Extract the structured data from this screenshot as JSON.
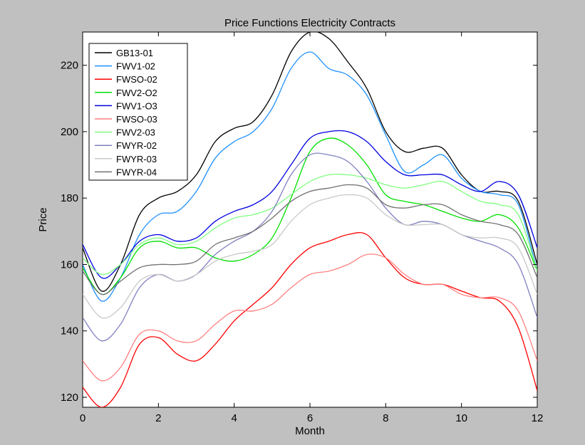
{
  "chart_data": {
    "type": "line",
    "title": "Price Functions Electricity Contracts",
    "xlabel": "Month",
    "ylabel": "Price",
    "xlim": [
      0,
      12
    ],
    "ylim": [
      117,
      230
    ],
    "xticks": [
      0,
      2,
      4,
      6,
      8,
      10,
      12
    ],
    "yticks": [
      120,
      140,
      160,
      180,
      200,
      220
    ],
    "grid": false,
    "legend_position": "top-left",
    "series": [
      {
        "name": "GB13-01",
        "color": "#000000",
        "x": [
          0,
          0.5,
          1,
          1.5,
          2,
          2.5,
          3,
          3.5,
          4,
          4.5,
          5,
          5.5,
          6,
          6.5,
          7,
          7.5,
          8,
          8.5,
          9,
          9.5,
          10,
          10.5,
          11,
          11.5,
          12
        ],
        "y": [
          165,
          152,
          160,
          175,
          180,
          182,
          187,
          197,
          201,
          203,
          211,
          224,
          230,
          228,
          221,
          213,
          200,
          194,
          195,
          195,
          187,
          182,
          182,
          179,
          160
        ]
      },
      {
        "name": "FWV1-02",
        "color": "#1e90ff",
        "x": [
          0,
          0.5,
          1,
          1.5,
          2,
          2.5,
          3,
          3.5,
          4,
          4.5,
          5,
          5.5,
          6,
          6.5,
          7,
          7.5,
          8,
          8.5,
          9,
          9.5,
          10,
          10.5,
          11,
          11.5,
          12
        ],
        "y": [
          160,
          149,
          156,
          169,
          175,
          176,
          182,
          192,
          197,
          200,
          207,
          219,
          224,
          219,
          217,
          211,
          199,
          188,
          190,
          193,
          186,
          182,
          181,
          178,
          158
        ]
      },
      {
        "name": "FWSO-02",
        "color": "#ff0000",
        "x": [
          0,
          0.5,
          1,
          1.5,
          2,
          2.5,
          3,
          3.5,
          4,
          4.5,
          5,
          5.5,
          6,
          6.5,
          7,
          7.5,
          8,
          8.5,
          9,
          9.5,
          10,
          10.5,
          11,
          11.5,
          12
        ],
        "y": [
          123,
          117,
          123,
          136,
          138,
          133,
          131,
          136,
          143,
          148,
          153,
          160,
          165,
          167,
          169,
          169,
          162,
          156,
          154,
          154,
          152,
          150,
          149,
          141,
          122
        ]
      },
      {
        "name": "FWV2-O2",
        "color": "#00e000",
        "x": [
          0,
          0.5,
          1,
          1.5,
          2,
          2.5,
          3,
          3.5,
          4,
          4.5,
          5,
          5.5,
          6,
          6.5,
          7,
          7.5,
          8,
          8.5,
          9,
          9.5,
          10,
          10.5,
          11,
          11.5,
          12
        ],
        "y": [
          159,
          151,
          156,
          165,
          167,
          165,
          165,
          162,
          161,
          163,
          168,
          180,
          194,
          198,
          196,
          190,
          181,
          179,
          178,
          176,
          174,
          173,
          175,
          171,
          158
        ]
      },
      {
        "name": "FWV1-O3",
        "color": "#0000e0",
        "x": [
          0,
          0.5,
          1,
          1.5,
          2,
          2.5,
          3,
          3.5,
          4,
          4.5,
          5,
          5.5,
          6,
          6.5,
          7,
          7.5,
          8,
          8.5,
          9,
          9.5,
          10,
          10.5,
          11,
          11.5,
          12
        ],
        "y": [
          166,
          156,
          160,
          167,
          169,
          167,
          168,
          173,
          176,
          178,
          182,
          190,
          198,
          200,
          200,
          197,
          191,
          187,
          187,
          187,
          184,
          182,
          185,
          181,
          165
        ]
      },
      {
        "name": "FWSO-03",
        "color": "#ff8080",
        "x": [
          0,
          0.5,
          1,
          1.5,
          2,
          2.5,
          3,
          3.5,
          4,
          4.5,
          5,
          5.5,
          6,
          6.5,
          7,
          7.5,
          8,
          8.5,
          9,
          9.5,
          10,
          10.5,
          11,
          11.5,
          12
        ],
        "y": [
          131,
          125,
          129,
          139,
          140,
          137,
          137,
          142,
          146,
          146,
          148,
          153,
          157,
          158,
          160,
          163,
          162,
          157,
          154,
          154,
          151,
          150,
          150,
          146,
          131
        ]
      },
      {
        "name": "FWV2-03",
        "color": "#80ff80",
        "x": [
          0,
          0.5,
          1,
          1.5,
          2,
          2.5,
          3,
          3.5,
          4,
          4.5,
          5,
          5.5,
          6,
          6.5,
          7,
          7.5,
          8,
          8.5,
          9,
          9.5,
          10,
          10.5,
          11,
          11.5,
          12
        ],
        "y": [
          162,
          157,
          160,
          166,
          168,
          166,
          167,
          171,
          174,
          175,
          177,
          181,
          185,
          187,
          187,
          186,
          184,
          183,
          184,
          185,
          182,
          179,
          178,
          175,
          158
        ]
      },
      {
        "name": "FWYR-02",
        "color": "#8080c0",
        "x": [
          0,
          0.5,
          1,
          1.5,
          2,
          2.5,
          3,
          3.5,
          4,
          4.5,
          5,
          5.5,
          6,
          6.5,
          7,
          7.5,
          8,
          8.5,
          9,
          9.5,
          10,
          10.5,
          11,
          11.5,
          12
        ],
        "y": [
          144,
          137,
          142,
          153,
          157,
          155,
          157,
          163,
          167,
          170,
          176,
          187,
          193,
          193,
          191,
          185,
          177,
          172,
          173,
          172,
          169,
          167,
          165,
          160,
          144
        ]
      },
      {
        "name": "FWYR-03",
        "color": "#c8c8c8",
        "x": [
          0,
          0.5,
          1,
          1.5,
          2,
          2.5,
          3,
          3.5,
          4,
          4.5,
          5,
          5.5,
          6,
          6.5,
          7,
          7.5,
          8,
          8.5,
          9,
          9.5,
          10,
          10.5,
          11,
          11.5,
          12
        ],
        "y": [
          151,
          144,
          147,
          155,
          157,
          155,
          157,
          161,
          163,
          164,
          166,
          173,
          178,
          180,
          181,
          180,
          175,
          172,
          172,
          172,
          169,
          168,
          168,
          165,
          151
        ]
      },
      {
        "name": "FWYR-04",
        "color": "#707070",
        "x": [
          0,
          0.5,
          1,
          1.5,
          2,
          2.5,
          3,
          3.5,
          4,
          4.5,
          5,
          5.5,
          6,
          6.5,
          7,
          7.5,
          8,
          8.5,
          9,
          9.5,
          10,
          10.5,
          11,
          11.5,
          12
        ],
        "y": [
          158,
          151,
          155,
          159,
          160,
          160,
          161,
          166,
          168,
          170,
          174,
          179,
          182,
          183,
          184,
          183,
          178,
          177,
          178,
          178,
          175,
          173,
          172,
          169,
          156
        ]
      }
    ]
  }
}
